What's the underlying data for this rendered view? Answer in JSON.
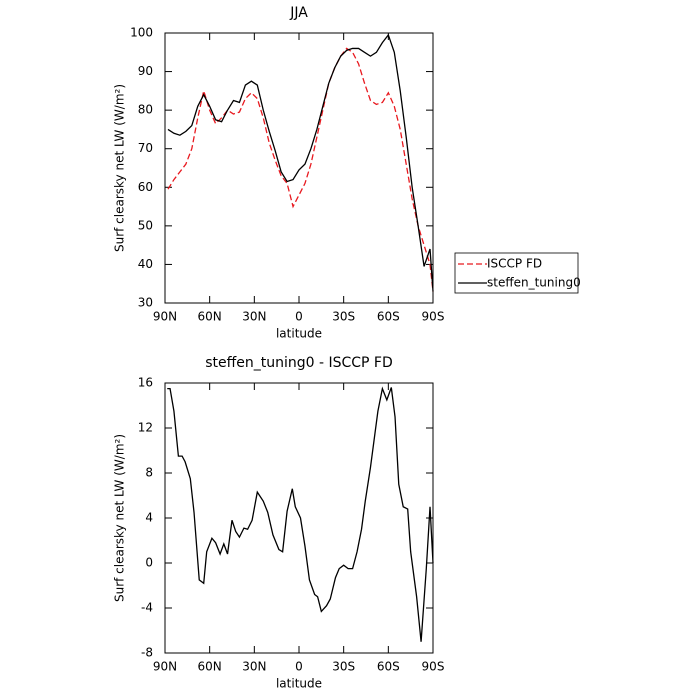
{
  "chart_data": [
    {
      "type": "line",
      "title": "JJA",
      "x_label": "latitude",
      "y_label": "Surf clearsky net LW (W/m²)",
      "x": [
        88,
        84,
        80,
        76,
        72,
        68,
        64,
        60,
        56,
        52,
        48,
        44,
        40,
        36,
        32,
        28,
        24,
        20,
        16,
        12,
        8,
        4,
        0,
        -4,
        -8,
        -12,
        -16,
        -20,
        -24,
        -28,
        -32,
        -36,
        -40,
        -44,
        -48,
        -52,
        -56,
        -60,
        -64,
        -68,
        -72,
        -76,
        -80,
        -84,
        -88,
        -90
      ],
      "series": [
        {
          "name": "ISCCP FD",
          "color": "#e8191f",
          "line_style": "dashed",
          "values": [
            59.5,
            62,
            64,
            66,
            70,
            78,
            85,
            80,
            76.5,
            78,
            80,
            79,
            79.5,
            83,
            84.5,
            83,
            78,
            71.5,
            67,
            63,
            61,
            55,
            58,
            61,
            66,
            73,
            80,
            87,
            91,
            94,
            96,
            95,
            92,
            87,
            82.5,
            81.5,
            82,
            84.5,
            81,
            75,
            66,
            57,
            50,
            45,
            40,
            33
          ]
        },
        {
          "name": "steffen_tuning0",
          "color": "#000000",
          "line_style": "solid",
          "values": [
            75,
            74,
            73.5,
            74.5,
            76,
            81,
            84,
            81,
            77.5,
            77,
            80,
            82.5,
            82,
            86.5,
            87.5,
            86.5,
            80,
            74.5,
            69.5,
            64,
            61.5,
            62,
            64.5,
            66,
            70,
            75,
            81,
            87,
            91,
            94,
            95.5,
            96,
            96,
            95,
            94,
            95,
            97.5,
            99.5,
            95,
            85,
            73,
            60,
            50,
            39.5,
            44,
            33
          ]
        }
      ],
      "xlim": [
        90,
        -90
      ],
      "xticks": [
        {
          "value": 90,
          "label": "90N"
        },
        {
          "value": 60,
          "label": "60N"
        },
        {
          "value": 30,
          "label": "30N"
        },
        0,
        {
          "value": -30,
          "label": "30S"
        },
        {
          "value": -60,
          "label": "60S"
        },
        {
          "value": -90,
          "label": "90S"
        }
      ],
      "ylim": [
        30,
        100
      ],
      "yticks": [
        30,
        40,
        50,
        60,
        70,
        80,
        90,
        100
      ],
      "legend": "outside-right"
    },
    {
      "type": "line",
      "title": "steffen_tuning0 - ISCCP FD",
      "x_label": "latitude",
      "y_label": "Surf clearsky net LW (W/m²)",
      "x": [
        88.5,
        86.6,
        84,
        81,
        78.5,
        76.5,
        73,
        70.5,
        67,
        64,
        62,
        58.5,
        56,
        53,
        50.5,
        48,
        45,
        42.5,
        40,
        37,
        34.5,
        31.5,
        28,
        24,
        21,
        17.5,
        13.5,
        11,
        8,
        4.5,
        2.5,
        -1,
        -4,
        -7,
        -10.5,
        -12.5,
        -15,
        -18.5,
        -21,
        -24.5,
        -27,
        -30,
        -33,
        -36,
        -39,
        -42,
        -44.5,
        -48,
        -51,
        -53,
        -56,
        -59,
        -62,
        -64.5,
        -67,
        -70,
        -73,
        -75,
        -79,
        -82,
        -85.5,
        -88,
        -90
      ],
      "series": [
        {
          "color": "#000000",
          "line_style": "solid",
          "values": [
            15.5,
            15.5,
            13.5,
            9.5,
            9.5,
            9,
            7.5,
            4.5,
            -1.5,
            -1.8,
            1,
            2.2,
            1.8,
            0.8,
            1.7,
            0.8,
            3.8,
            2.8,
            2.3,
            3.1,
            3,
            3.8,
            6.3,
            5.5,
            4.5,
            2.5,
            1.2,
            1,
            4.6,
            6.6,
            5,
            4,
            1.5,
            -1.5,
            -2.8,
            -3,
            -4.3,
            -3.8,
            -3.2,
            -1.3,
            -0.5,
            -0.2,
            -0.5,
            -0.5,
            1,
            3,
            5.5,
            8.5,
            11.5,
            13.5,
            15.5,
            14.5,
            15.6,
            13,
            7,
            5,
            4.8,
            1,
            -3,
            -7,
            -0.5,
            5,
            0
          ]
        }
      ],
      "xlim": [
        90,
        -90
      ],
      "xticks": [
        {
          "value": 90,
          "label": "90N"
        },
        {
          "value": 60,
          "label": "60N"
        },
        {
          "value": 30,
          "label": "30N"
        },
        0,
        {
          "value": -30,
          "label": "30S"
        },
        {
          "value": -60,
          "label": "60S"
        },
        {
          "value": -90,
          "label": "90S"
        }
      ],
      "ylim": [
        -8,
        16
      ],
      "yticks": [
        -8,
        -4,
        0,
        4,
        8,
        12,
        16
      ]
    }
  ]
}
